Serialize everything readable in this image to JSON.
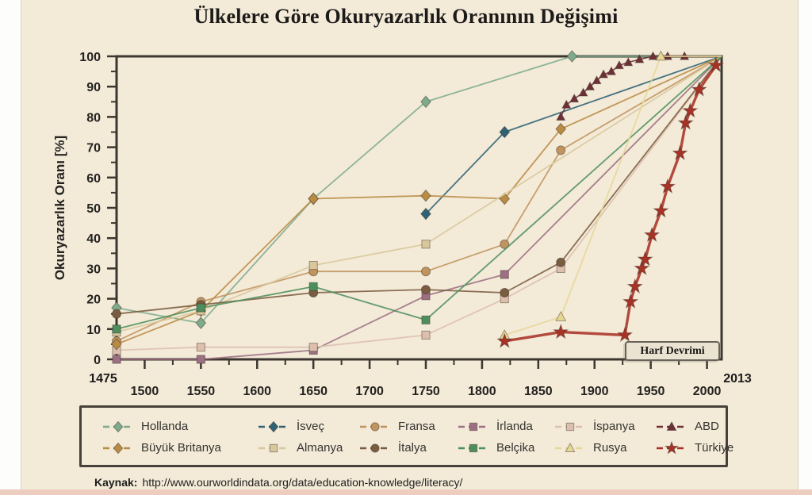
{
  "page": {
    "title": "Ülkelere Göre Okuryazarlık Oranının Değişimi",
    "source_prefix": "Kaynak:",
    "source_url": "http://www.ourworldindata.org/data/education-knowledge/literacy/"
  },
  "chart_data": {
    "type": "line",
    "title": "Ülkelere Göre Okuryazarlık Oranının Değişimi",
    "xlabel": "",
    "ylabel": "Okuryazarlık Oranı [%]",
    "x_range": [
      1475,
      2013
    ],
    "y_range": [
      0,
      100
    ],
    "x_start_label": "1475",
    "x_end_label": "2013",
    "x_ticks": [
      1500,
      1550,
      1600,
      1650,
      1700,
      1750,
      1800,
      1850,
      1900,
      1950,
      2000
    ],
    "y_ticks": [
      0,
      10,
      20,
      30,
      40,
      50,
      60,
      70,
      80,
      90,
      100
    ],
    "grid": false,
    "legend_position": "bottom",
    "annotation": {
      "text": "Harf Devrimi",
      "x": 1930,
      "y": 5
    },
    "series": [
      {
        "name": "Hollanda",
        "marker": "diamond",
        "color": "#7dab8c",
        "line_width": 1.8,
        "points": [
          [
            1475,
            17
          ],
          [
            1550,
            12
          ],
          [
            1650,
            53
          ],
          [
            1750,
            85
          ],
          [
            1880,
            100
          ],
          [
            2013,
            100
          ]
        ]
      },
      {
        "name": "İsveç",
        "marker": "diamond",
        "color": "#2f6274",
        "line_width": 1.8,
        "points": [
          [
            1750,
            48
          ],
          [
            1820,
            75
          ],
          [
            2013,
            100
          ]
        ]
      },
      {
        "name": "Fransa",
        "marker": "circle",
        "color": "#c0945e",
        "line_width": 1.8,
        "points": [
          [
            1475,
            6
          ],
          [
            1550,
            19
          ],
          [
            1650,
            29
          ],
          [
            1750,
            29
          ],
          [
            1820,
            38
          ],
          [
            1870,
            69
          ],
          [
            2013,
            100
          ]
        ]
      },
      {
        "name": "İrlanda",
        "marker": "square",
        "color": "#9c7082",
        "line_width": 1.8,
        "points": [
          [
            1475,
            0
          ],
          [
            1550,
            0
          ],
          [
            1650,
            3
          ],
          [
            1750,
            21
          ],
          [
            1820,
            28
          ],
          [
            2013,
            100
          ]
        ]
      },
      {
        "name": "İspanya",
        "marker": "square",
        "color": "#ddbfae",
        "line_width": 1.8,
        "points": [
          [
            1475,
            3
          ],
          [
            1550,
            4
          ],
          [
            1650,
            4
          ],
          [
            1750,
            8
          ],
          [
            1820,
            20
          ],
          [
            1870,
            30
          ],
          [
            2013,
            100
          ]
        ]
      },
      {
        "name": "ABD",
        "marker": "triangle",
        "color": "#6e3036",
        "line_width": 1.6,
        "points": [
          [
            1870,
            80
          ],
          [
            1875,
            84
          ],
          [
            1882,
            86
          ],
          [
            1890,
            88
          ],
          [
            1896,
            90
          ],
          [
            1902,
            92
          ],
          [
            1908,
            94
          ],
          [
            1915,
            95
          ],
          [
            1922,
            97
          ],
          [
            1930,
            98
          ],
          [
            1940,
            99
          ],
          [
            1952,
            100
          ],
          [
            1965,
            100
          ],
          [
            1980,
            100
          ],
          [
            2013,
            100
          ]
        ]
      },
      {
        "name": "Büyük Britanya",
        "marker": "diamond",
        "color": "#b98b43",
        "line_width": 1.8,
        "points": [
          [
            1475,
            5
          ],
          [
            1550,
            16
          ],
          [
            1650,
            53
          ],
          [
            1750,
            54
          ],
          [
            1820,
            53
          ],
          [
            1870,
            76
          ],
          [
            2013,
            100
          ]
        ]
      },
      {
        "name": "Almanya",
        "marker": "square",
        "color": "#d9c79c",
        "line_width": 1.8,
        "points": [
          [
            1475,
            9
          ],
          [
            1550,
            16
          ],
          [
            1650,
            31
          ],
          [
            1750,
            38
          ],
          [
            2013,
            100
          ]
        ]
      },
      {
        "name": "İtalya",
        "marker": "circle",
        "color": "#7a5c40",
        "line_width": 1.8,
        "points": [
          [
            1475,
            15
          ],
          [
            1550,
            18
          ],
          [
            1650,
            22
          ],
          [
            1750,
            23
          ],
          [
            1820,
            22
          ],
          [
            1870,
            32
          ],
          [
            2013,
            100
          ]
        ]
      },
      {
        "name": "Belçika",
        "marker": "square",
        "color": "#4d8f5c",
        "line_width": 1.8,
        "points": [
          [
            1475,
            10
          ],
          [
            1550,
            17
          ],
          [
            1650,
            24
          ],
          [
            1750,
            13
          ],
          [
            2013,
            100
          ]
        ]
      },
      {
        "name": "Rusya",
        "marker": "triangle",
        "color": "#e6d795",
        "line_width": 1.8,
        "points": [
          [
            1820,
            8
          ],
          [
            1870,
            14
          ],
          [
            1959,
            100
          ],
          [
            2013,
            100
          ]
        ]
      },
      {
        "name": "Türkiye",
        "marker": "star",
        "color": "#a93226",
        "line_width": 3.4,
        "points": [
          [
            1820,
            6
          ],
          [
            1870,
            9
          ],
          [
            1927,
            8
          ],
          [
            1932,
            19
          ],
          [
            1936,
            24
          ],
          [
            1942,
            30
          ],
          [
            1945,
            33
          ],
          [
            1951,
            41
          ],
          [
            1959,
            49
          ],
          [
            1965,
            57
          ],
          [
            1976,
            68
          ],
          [
            1981,
            78
          ],
          [
            1985,
            82
          ],
          [
            1993,
            89
          ],
          [
            2008,
            97
          ]
        ]
      }
    ]
  },
  "legend": {
    "entries": [
      {
        "label": "Hollanda",
        "series": 0
      },
      {
        "label": "İsveç",
        "series": 1
      },
      {
        "label": "Fransa",
        "series": 2
      },
      {
        "label": "İrlanda",
        "series": 3
      },
      {
        "label": "İspanya",
        "series": 4
      },
      {
        "label": "ABD",
        "series": 5
      },
      {
        "label": "Büyük Britanya",
        "series": 6
      },
      {
        "label": "Almanya",
        "series": 7
      },
      {
        "label": "İtalya",
        "series": 8
      },
      {
        "label": "Belçika",
        "series": 9
      },
      {
        "label": "Rusya",
        "series": 10
      },
      {
        "label": "Türkiye",
        "series": 11
      }
    ]
  },
  "colors": {
    "background": "#f3ead8",
    "frame": "#3b362f",
    "text": "#23221f",
    "turkey_red": "#a93226",
    "usa_maroon": "#6e3036"
  }
}
